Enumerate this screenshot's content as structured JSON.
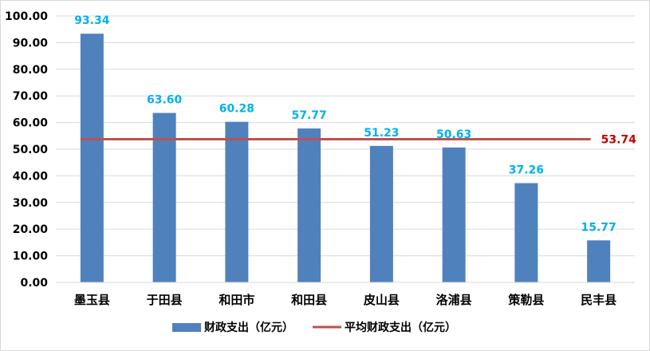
{
  "chart_data": {
    "type": "bar",
    "categories": [
      "墨玉县",
      "于田县",
      "和田市",
      "和田县",
      "皮山县",
      "洛浦县",
      "策勒县",
      "民丰县"
    ],
    "series": [
      {
        "name": "财政支出（亿元）",
        "type": "bar",
        "values": [
          93.34,
          63.6,
          60.28,
          57.77,
          51.23,
          50.63,
          37.26,
          15.77
        ],
        "labels": [
          "93.34",
          "63.60",
          "60.28",
          "57.77",
          "51.23",
          "50.63",
          "37.26",
          "15.77"
        ],
        "color": "#4f81bd"
      },
      {
        "name": "平均财政支出（亿元）",
        "type": "line",
        "value": 53.74,
        "label": "53.74",
        "color": "#c0504d"
      }
    ],
    "data_label_color": "#00b0f0",
    "average_label_color": "#c00000",
    "ylim": [
      0,
      100
    ],
    "yticks": [
      "0.00",
      "10.00",
      "20.00",
      "30.00",
      "40.00",
      "50.00",
      "60.00",
      "70.00",
      "80.00",
      "90.00",
      "100.00"
    ],
    "grid": true,
    "legend_position": "bottom"
  }
}
